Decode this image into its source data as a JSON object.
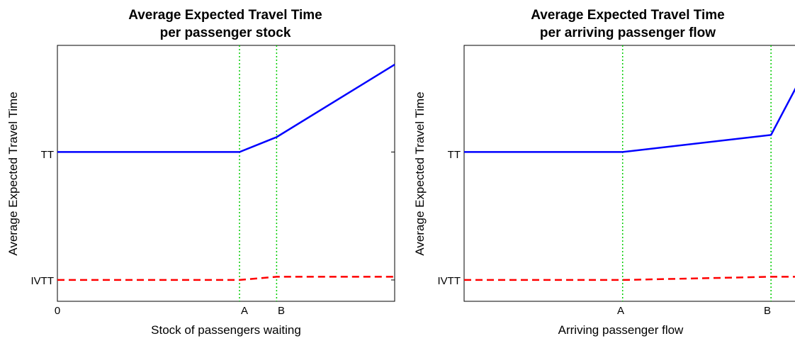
{
  "chart_data": [
    {
      "type": "line",
      "title": [
        "Average Expected Travel Time",
        "per passenger stock"
      ],
      "xlabel": "Stock of passengers waiting",
      "ylabel": "Average Expected Travel Time",
      "xticks": [
        "0",
        "A",
        "B"
      ],
      "yticks": [
        "IVTT",
        "TT"
      ],
      "grid": "vertical dotted lines at A and B",
      "series": [
        {
          "color": "#0000ff",
          "style": "solid",
          "x": [
            0,
            0.54,
            0.65,
            1.0
          ],
          "y": [
            0.7,
            0.7,
            0.77,
            1.11
          ]
        },
        {
          "color": "#ff0000",
          "style": "dashed",
          "x": [
            0,
            0.54,
            0.65,
            1.0
          ],
          "y": [
            0.1,
            0.1,
            0.115,
            0.115
          ]
        }
      ],
      "markers": {
        "A": 0.54,
        "B": 0.65
      }
    },
    {
      "type": "line",
      "title": [
        "Average Expected Travel Time",
        "per arriving passenger flow"
      ],
      "xlabel": "Arriving passenger flow",
      "ylabel": "Average Expected Travel Time",
      "xticks": [
        "A",
        "B"
      ],
      "yticks": [
        "IVTT",
        "TT"
      ],
      "grid": "vertical dotted lines at A and B",
      "series": [
        {
          "color": "#0000ff",
          "style": "solid",
          "x": [
            0,
            0.47,
            0.91,
            1.0
          ],
          "y": [
            0.7,
            0.7,
            0.78,
            1.05
          ]
        },
        {
          "color": "#ff0000",
          "style": "dashed",
          "x": [
            0,
            0.47,
            0.91,
            1.0
          ],
          "y": [
            0.1,
            0.1,
            0.115,
            0.115
          ]
        }
      ],
      "markers": {
        "A": 0.47,
        "B": 0.91
      }
    }
  ]
}
